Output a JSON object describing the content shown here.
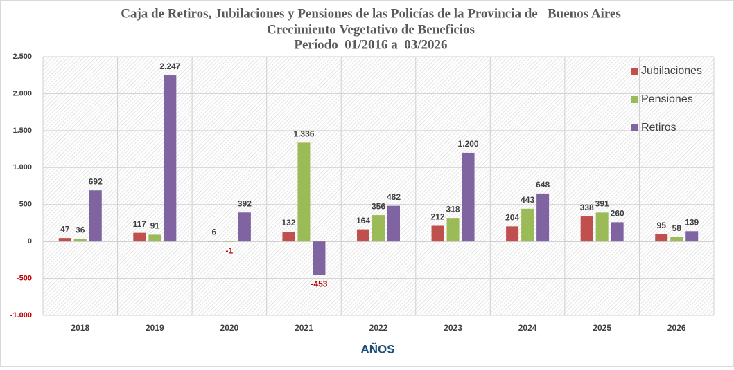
{
  "chart_data": {
    "type": "bar",
    "title": "Caja de Retiros, Jubilaciones y Pensiones de las Policías de la Provincia de   Buenos Aires",
    "subtitle": "Crecimiento Vegetativo de Beneficios",
    "period": "Período  01/2016 a  03/2026",
    "x_label": "AÑOS",
    "categories": [
      "2018",
      "2019",
      "2020",
      "2021",
      "2022",
      "2023",
      "2024",
      "2025",
      "2026"
    ],
    "series": [
      {
        "name": "Jubilaciones",
        "color": "#c0504d",
        "values": [
          47,
          117,
          6,
          132,
          164,
          212,
          204,
          338,
          95
        ]
      },
      {
        "name": "Pensiones",
        "color": "#9bbb59",
        "values": [
          36,
          91,
          -1,
          1336,
          356,
          318,
          443,
          391,
          58
        ],
        "value_labels": [
          "36",
          "91",
          "-1",
          "1.336",
          "356",
          "318",
          "443",
          "391",
          "58"
        ]
      },
      {
        "name": "Retiros",
        "color": "#8064a2",
        "values": [
          692,
          2247,
          392,
          -453,
          482,
          1200,
          648,
          260,
          139
        ],
        "value_labels": [
          "692",
          "2.247",
          "392",
          "-453",
          "482",
          "1.200",
          "648",
          "260",
          "139"
        ]
      }
    ],
    "ylim": [
      -1000,
      2500
    ],
    "yticks": [
      {
        "value": -1000,
        "label": "-1.000"
      },
      -500,
      0,
      500,
      {
        "value": 1000,
        "label": "1.000"
      },
      {
        "value": 1500,
        "label": "1.500"
      },
      {
        "value": 2000,
        "label": "2.000"
      },
      {
        "value": 2500,
        "label": "2.500"
      }
    ],
    "grid": true,
    "legend": "top-right"
  }
}
